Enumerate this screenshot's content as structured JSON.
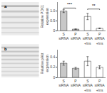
{
  "chart_data": [
    {
      "type": "bands",
      "title": "a",
      "ylim": [
        0,
        1
      ],
      "bands": [
        {
          "y": 0.88,
          "h": 0.06,
          "color": "#b0b0b0"
        },
        {
          "y": 0.72,
          "h": 0.06,
          "color": "#c0c0c0"
        },
        {
          "y": 0.55,
          "h": 0.05,
          "color": "#c8c8c8"
        },
        {
          "y": 0.38,
          "h": 0.05,
          "color": "#cccccc"
        },
        {
          "y": 0.22,
          "h": 0.05,
          "color": "#d0d0d0"
        },
        {
          "y": 0.08,
          "h": 0.04,
          "color": "#d8d8d8"
        }
      ]
    },
    {
      "type": "bar",
      "y_label": "Relative PDK1\nexpression",
      "categories": [
        "S\nsiRNA",
        "P\nsiRNA",
        "S\nsiRNA\n+Ins",
        "P\nsiRNA\n+Ins"
      ],
      "values": [
        1.0,
        0.08,
        0.72,
        0.12
      ],
      "errors": [
        0.08,
        0.01,
        0.16,
        0.02
      ],
      "colors": [
        "#c8c8c8",
        "#c8c8c8",
        "#ffffff",
        "#ffffff"
      ],
      "ylim": [
        0,
        1.45
      ],
      "yticks": [
        0,
        0.5,
        {
          "value": 1.0,
          "label": "1.0"
        }
      ],
      "grid": false,
      "significance": [
        {
          "x1": 0,
          "x2": 1,
          "y": 1.15,
          "label": "***"
        },
        {
          "x1": 2,
          "x2": 3,
          "y": 1.1,
          "label": "**"
        }
      ]
    },
    {
      "type": "bands",
      "title": "b",
      "ylim": [
        0,
        1
      ],
      "bands": [
        {
          "y": 0.9,
          "h": 0.05,
          "color": "#b8b8b8"
        },
        {
          "y": 0.78,
          "h": 0.05,
          "color": "#c0c0c0"
        },
        {
          "y": 0.66,
          "h": 0.05,
          "color": "#c4c4c4"
        },
        {
          "y": 0.54,
          "h": 0.05,
          "color": "#c8c8c8"
        },
        {
          "y": 0.42,
          "h": 0.04,
          "color": "#cccccc"
        },
        {
          "y": 0.3,
          "h": 0.04,
          "color": "#d0d0d0"
        },
        {
          "y": 0.18,
          "h": 0.04,
          "color": "#d4d4d4"
        },
        {
          "y": 0.07,
          "h": 0.04,
          "color": "#d8d8d8"
        }
      ]
    },
    {
      "type": "bar",
      "y_label": "Relative pAkt\nexpression",
      "categories": [
        "S\nsiRNA",
        "P\nsiRNA",
        "S\nsiRNA\n+Ins",
        "P\nsiRNA\n+Ins"
      ],
      "values": [
        0.28,
        0.18,
        0.32,
        0.2
      ],
      "errors": [
        0.04,
        0.02,
        0.09,
        0.03
      ],
      "colors": [
        "#c8c8c8",
        "#c8c8c8",
        "#ffffff",
        "#ffffff"
      ],
      "ylim": [
        0,
        0.55
      ],
      "yticks": [
        0,
        0.2,
        0.4
      ],
      "grid": false
    }
  ]
}
